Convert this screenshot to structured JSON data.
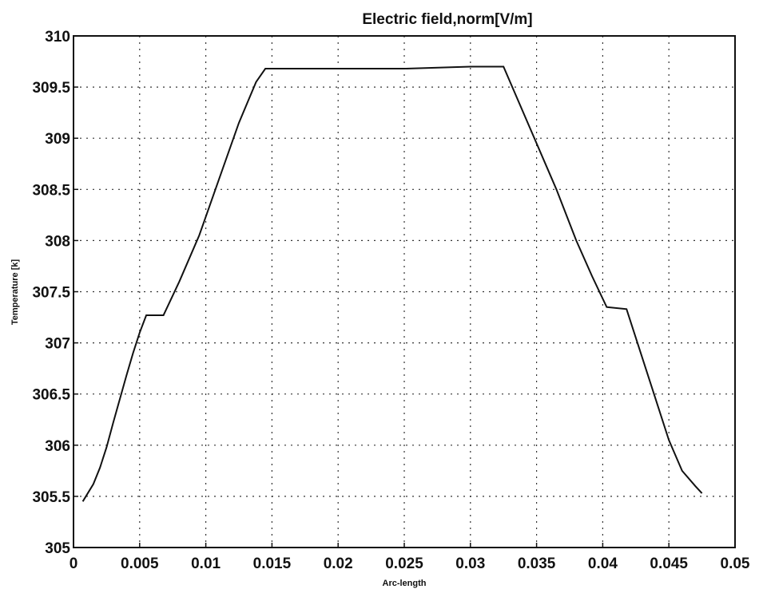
{
  "chart_data": {
    "type": "line",
    "title": "Electric field,norm[V/m]",
    "x_label": "Arc-length",
    "y_label": "Temperature [k]",
    "x": [
      0.0007,
      0.0015,
      0.002,
      0.0025,
      0.003,
      0.0035,
      0.004,
      0.0045,
      0.005,
      0.0055,
      0.0068,
      0.008,
      0.0095,
      0.011,
      0.0125,
      0.0138,
      0.0145,
      0.02,
      0.025,
      0.03,
      0.0325,
      0.0345,
      0.0365,
      0.038,
      0.0392,
      0.0403,
      0.0418,
      0.043,
      0.044,
      0.045,
      0.046,
      0.047,
      0.0475
    ],
    "series": [
      {
        "name": "Temperature",
        "color": "#111111",
        "values": [
          305.45,
          305.62,
          305.78,
          305.98,
          306.22,
          306.45,
          306.68,
          306.9,
          307.1,
          307.27,
          307.27,
          307.6,
          308.05,
          308.6,
          309.15,
          309.55,
          309.68,
          309.68,
          309.68,
          309.7,
          309.7,
          309.1,
          308.5,
          308.0,
          307.65,
          307.35,
          307.33,
          306.85,
          306.45,
          306.05,
          305.75,
          305.6,
          305.53
        ]
      }
    ],
    "xlim": [
      0,
      0.05
    ],
    "xticks": [
      0,
      0.005,
      0.01,
      0.015,
      0.02,
      0.025,
      0.03,
      0.035,
      0.04,
      0.045,
      0.05
    ],
    "ylim": [
      305,
      310
    ],
    "yticks": [
      305,
      305.5,
      306,
      306.5,
      307,
      307.5,
      308,
      308.5,
      309,
      309.5,
      310
    ],
    "grid": true
  }
}
